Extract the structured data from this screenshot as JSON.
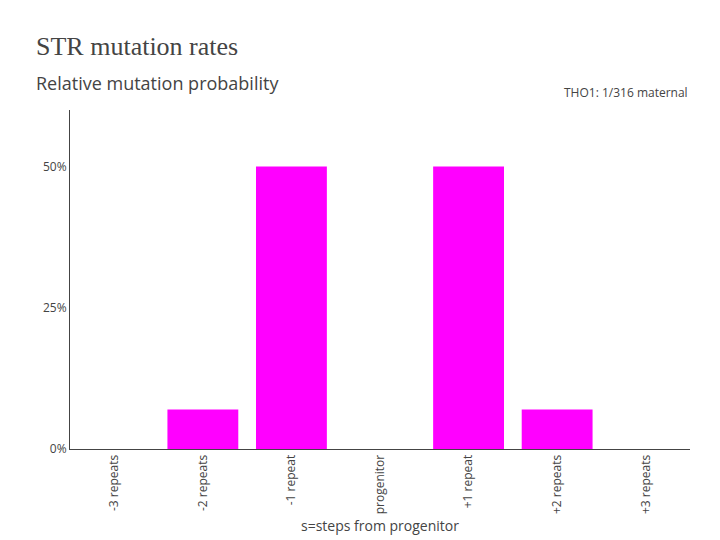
{
  "chart_data": {
    "type": "bar",
    "title": "STR mutation rates",
    "subtitle": "Relative mutation probability",
    "xlabel": "s=steps from progenitor",
    "annotation": "THO1: 1/316 maternal",
    "categories": [
      "-3 repeats",
      "-2 repeats",
      "-1 repeat",
      "progenitor",
      "+1 repeat",
      "+2 repeats",
      "+3 repeats"
    ],
    "values": [
      0,
      7,
      50,
      0,
      50,
      7,
      0
    ],
    "color": "#ff00ff",
    "ylim": [
      0,
      60
    ],
    "yticks": [
      {
        "value": 0,
        "label": "0%"
      },
      {
        "value": 25,
        "label": "25%"
      },
      {
        "value": 50,
        "label": "50%"
      }
    ],
    "grid": false
  }
}
